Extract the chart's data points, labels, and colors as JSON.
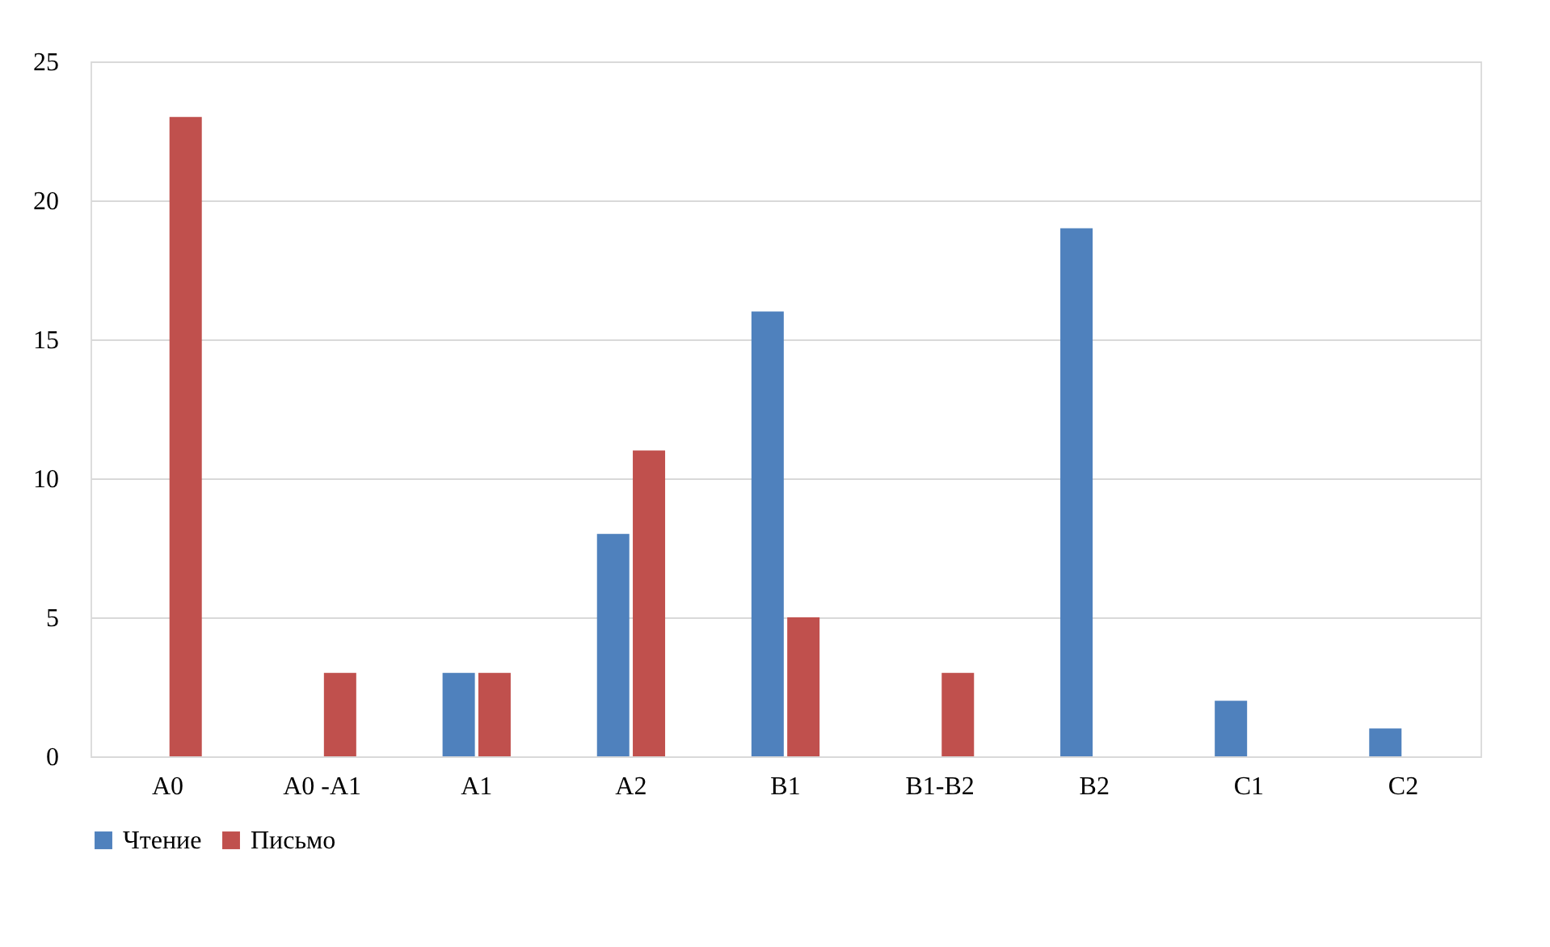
{
  "chart_data": {
    "type": "bar",
    "categories": [
      "A0",
      "A0 -A1",
      "A1",
      "A2",
      "B1",
      "B1-B2",
      "B2",
      "C1",
      "C2"
    ],
    "series": [
      {
        "name": "Чтение",
        "color": "#4f81bd",
        "values": [
          0,
          0,
          3,
          8,
          16,
          0,
          19,
          2,
          1
        ]
      },
      {
        "name": "Письмо",
        "color": "#c0504d",
        "values": [
          23,
          3,
          3,
          11,
          5,
          3,
          0,
          0,
          0
        ]
      }
    ],
    "ylim": [
      0,
      25
    ],
    "yticks": [
      0,
      5,
      10,
      15,
      20,
      25
    ],
    "grid": "y",
    "legend": "bottom"
  }
}
